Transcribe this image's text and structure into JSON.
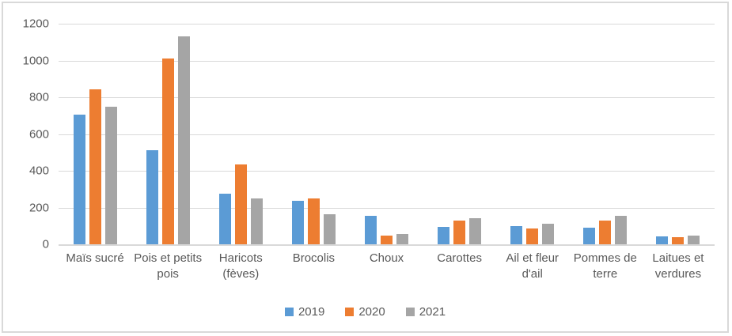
{
  "chart_data": {
    "type": "bar",
    "title": "",
    "categories": [
      "Maïs sucré",
      "Pois et petits pois",
      "Haricots (fèves)",
      "Brocolis",
      "Choux",
      "Carottes",
      "Ail et fleur d'ail",
      "Pommes de terre",
      "Laitues et verdures"
    ],
    "series": [
      {
        "name": "2019",
        "color": "#5B9BD5",
        "values": [
          705,
          510,
          275,
          237,
          154,
          96,
          97,
          89,
          44
        ]
      },
      {
        "name": "2020",
        "color": "#ED7D31",
        "values": [
          845,
          1012,
          433,
          248,
          48,
          131,
          85,
          130,
          39
        ]
      },
      {
        "name": "2021",
        "color": "#A5A5A5",
        "values": [
          748,
          1130,
          250,
          163,
          54,
          142,
          113,
          157,
          49
        ]
      }
    ],
    "ylim": [
      0,
      1200
    ],
    "yticks": [
      0,
      200,
      400,
      600,
      800,
      1000,
      1200
    ],
    "grid": true,
    "legend_position": "bottom",
    "colors": {
      "axis_text": "#595959",
      "gridline": "#D9D9D9",
      "frame_border": "#D9D9D9",
      "background": "#FFFFFF"
    }
  }
}
